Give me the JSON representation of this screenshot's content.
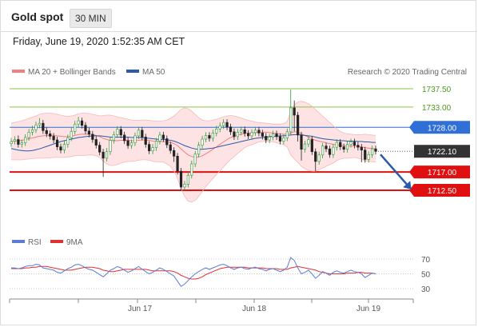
{
  "header": {
    "title": "Gold spot",
    "timeframe": "30 MIN"
  },
  "timestamp": "Friday, June 19, 2020 1:52:35 AM CET",
  "credit": "Research © 2020 Trading Central",
  "legend_main": [
    {
      "label": "MA 20 + Bollinger Bands",
      "color": "#f08080"
    },
    {
      "label": "MA 50",
      "color": "#2a5aa8"
    }
  ],
  "legend_rsi": [
    {
      "label": "RSI",
      "color": "#5b7bd5"
    },
    {
      "label": "9MA",
      "color": "#e03030"
    }
  ],
  "colors": {
    "resistance": "#8cc63f",
    "pivot": "#2f6fd6",
    "support": "#e01010",
    "current": "#333333",
    "arrow": "#2a5aa8",
    "band": "#fde3e3",
    "candle_up": "#2b9a3a",
    "candle_down": "#222222"
  },
  "chart_data": [
    {
      "type": "candlestick",
      "ylim": [
        1700,
        1742
      ],
      "x_ticks": [
        "Jun 17",
        "Jun 18",
        "Jun 19"
      ],
      "levels": [
        {
          "label": "1737.50",
          "value": 1737.5,
          "kind": "resistance"
        },
        {
          "label": "1733.00",
          "value": 1733.0,
          "kind": "resistance"
        },
        {
          "label": "1728.00",
          "value": 1728.0,
          "kind": "pivot"
        },
        {
          "label": "1722.10",
          "value": 1722.1,
          "kind": "current"
        },
        {
          "label": "1717.00",
          "value": 1717.0,
          "kind": "support"
        },
        {
          "label": "1712.50",
          "value": 1712.5,
          "kind": "support"
        }
      ],
      "forecast": {
        "from": 1722.1,
        "to": 1712.5
      },
      "close": [
        1724.5,
        1725.0,
        1723.8,
        1724.2,
        1725.5,
        1726.8,
        1727.4,
        1728.6,
        1729.0,
        1727.2,
        1726.4,
        1725.8,
        1724.9,
        1723.2,
        1722.4,
        1723.8,
        1725.4,
        1727.0,
        1728.8,
        1729.6,
        1728.5,
        1727.1,
        1726.3,
        1725.0,
        1723.6,
        1721.9,
        1720.4,
        1722.0,
        1724.8,
        1726.2,
        1727.5,
        1726.1,
        1724.7,
        1723.5,
        1724.2,
        1725.9,
        1727.3,
        1725.6,
        1723.8,
        1722.2,
        1723.0,
        1724.6,
        1726.1,
        1725.2,
        1723.7,
        1722.3,
        1720.9,
        1717.2,
        1713.3,
        1714.0,
        1716.2,
        1719.0,
        1721.4,
        1723.6,
        1725.1,
        1726.0,
        1725.3,
        1726.6,
        1727.6,
        1728.4,
        1729.2,
        1728.1,
        1726.9,
        1725.7,
        1726.8,
        1727.4,
        1726.5,
        1725.9,
        1726.7,
        1727.3,
        1726.6,
        1725.8,
        1724.9,
        1725.6,
        1726.4,
        1725.7,
        1724.6,
        1725.4,
        1726.9,
        1732.8,
        1731.0,
        1726.1,
        1722.6,
        1723.9,
        1725.0,
        1722.0,
        1719.6,
        1721.2,
        1723.4,
        1722.7,
        1721.3,
        1723.1,
        1724.3,
        1723.2,
        1722.6,
        1723.8,
        1724.4,
        1723.6,
        1723.1,
        1722.4,
        1720.1,
        1721.3,
        1722.7,
        1722.1
      ],
      "open": [
        1724.0,
        1724.6,
        1725.0,
        1723.8,
        1724.2,
        1725.5,
        1726.8,
        1727.4,
        1728.6,
        1729.0,
        1727.2,
        1726.4,
        1725.8,
        1724.9,
        1723.2,
        1722.4,
        1723.8,
        1725.4,
        1727.0,
        1728.8,
        1729.6,
        1728.5,
        1727.1,
        1726.3,
        1725.0,
        1723.6,
        1721.9,
        1720.4,
        1722.0,
        1724.8,
        1726.2,
        1727.5,
        1726.1,
        1724.7,
        1723.5,
        1724.2,
        1725.9,
        1727.3,
        1725.6,
        1723.8,
        1722.2,
        1723.0,
        1724.6,
        1726.1,
        1725.2,
        1723.7,
        1722.3,
        1720.9,
        1717.2,
        1713.3,
        1714.0,
        1716.2,
        1719.0,
        1721.4,
        1723.6,
        1725.1,
        1726.0,
        1725.3,
        1726.6,
        1727.6,
        1728.4,
        1729.2,
        1728.1,
        1726.9,
        1725.7,
        1726.8,
        1727.4,
        1726.5,
        1725.9,
        1726.7,
        1727.3,
        1726.6,
        1725.8,
        1724.9,
        1725.6,
        1726.4,
        1725.7,
        1724.6,
        1725.4,
        1726.9,
        1732.8,
        1731.0,
        1726.1,
        1722.6,
        1723.9,
        1725.0,
        1722.0,
        1719.6,
        1721.2,
        1723.4,
        1722.7,
        1721.3,
        1723.1,
        1724.3,
        1723.2,
        1722.6,
        1723.8,
        1724.4,
        1723.6,
        1723.1,
        1722.4,
        1720.1,
        1721.3,
        1722.7
      ],
      "high": [
        1725.4,
        1725.8,
        1726.0,
        1725.0,
        1726.3,
        1727.6,
        1728.4,
        1729.4,
        1730.3,
        1729.8,
        1728.0,
        1727.2,
        1726.6,
        1725.7,
        1724.0,
        1724.6,
        1726.2,
        1727.9,
        1729.6,
        1730.6,
        1730.4,
        1729.3,
        1727.9,
        1727.1,
        1725.8,
        1724.4,
        1722.7,
        1722.9,
        1725.6,
        1727.0,
        1728.3,
        1728.3,
        1726.9,
        1725.5,
        1725.0,
        1726.7,
        1728.1,
        1728.1,
        1726.4,
        1724.6,
        1723.9,
        1725.4,
        1726.9,
        1726.9,
        1726.0,
        1724.5,
        1723.1,
        1721.7,
        1718.0,
        1714.8,
        1717.0,
        1719.8,
        1722.2,
        1724.4,
        1725.9,
        1726.8,
        1726.8,
        1727.4,
        1728.4,
        1729.2,
        1730.0,
        1730.0,
        1728.9,
        1727.7,
        1727.6,
        1728.2,
        1728.2,
        1727.3,
        1727.5,
        1728.1,
        1728.1,
        1727.4,
        1726.6,
        1726.4,
        1727.2,
        1727.2,
        1726.5,
        1726.2,
        1727.7,
        1737.3,
        1734.6,
        1731.8,
        1726.9,
        1724.7,
        1725.8,
        1725.8,
        1722.8,
        1722.0,
        1724.2,
        1724.2,
        1723.5,
        1723.9,
        1725.1,
        1725.1,
        1724.0,
        1724.6,
        1725.2,
        1725.2,
        1724.4,
        1723.9,
        1723.2,
        1722.1,
        1723.5,
        1723.5
      ],
      "low": [
        1723.2,
        1723.8,
        1723.0,
        1723.0,
        1723.4,
        1724.7,
        1726.0,
        1726.6,
        1727.8,
        1726.4,
        1725.6,
        1725.0,
        1724.1,
        1722.4,
        1721.6,
        1721.6,
        1723.0,
        1724.6,
        1726.2,
        1728.0,
        1727.7,
        1726.3,
        1725.5,
        1724.2,
        1722.8,
        1721.1,
        1715.8,
        1719.6,
        1721.2,
        1724.0,
        1725.4,
        1725.3,
        1723.9,
        1722.7,
        1722.7,
        1723.4,
        1725.1,
        1724.8,
        1723.0,
        1721.4,
        1721.4,
        1722.2,
        1723.8,
        1724.4,
        1722.9,
        1721.5,
        1719.5,
        1716.4,
        1712.4,
        1712.5,
        1713.2,
        1715.4,
        1718.2,
        1720.6,
        1722.8,
        1724.3,
        1724.5,
        1724.5,
        1725.8,
        1726.8,
        1727.6,
        1727.3,
        1726.1,
        1724.9,
        1724.9,
        1726.0,
        1725.7,
        1725.1,
        1725.1,
        1725.9,
        1725.8,
        1725.0,
        1724.1,
        1724.1,
        1724.8,
        1724.9,
        1723.8,
        1723.8,
        1724.6,
        1726.1,
        1727.0,
        1724.5,
        1719.8,
        1721.8,
        1723.1,
        1721.2,
        1717.2,
        1718.8,
        1720.4,
        1721.9,
        1720.5,
        1720.5,
        1722.3,
        1722.4,
        1721.8,
        1721.8,
        1723.0,
        1722.8,
        1722.3,
        1719.4,
        1719.3,
        1719.3,
        1720.5,
        1721.3
      ],
      "ma20": [
        1724.5,
        1724.6,
        1724.7,
        1724.8,
        1725.0,
        1725.2,
        1725.4,
        1725.6,
        1725.8,
        1725.9,
        1726.0,
        1726.0,
        1726.0,
        1725.9,
        1725.8,
        1725.7,
        1725.7,
        1725.8,
        1726.0,
        1726.2,
        1726.3,
        1726.3,
        1726.3,
        1726.2,
        1726.0,
        1725.7,
        1725.3,
        1725.0,
        1724.8,
        1724.7,
        1724.7,
        1724.8,
        1724.8,
        1724.8,
        1724.7,
        1724.7,
        1724.8,
        1724.9,
        1724.9,
        1724.8,
        1724.6,
        1724.5,
        1724.5,
        1724.5,
        1724.4,
        1724.3,
        1724.0,
        1723.5,
        1722.7,
        1721.9,
        1721.2,
        1720.8,
        1720.6,
        1720.7,
        1721.0,
        1721.5,
        1722.0,
        1722.6,
        1723.2,
        1723.8,
        1724.4,
        1725.0,
        1725.5,
        1725.8,
        1726.1,
        1726.3,
        1726.5,
        1726.6,
        1726.6,
        1726.7,
        1726.8,
        1726.8,
        1726.8,
        1726.7,
        1726.6,
        1726.5,
        1726.4,
        1726.3,
        1726.3,
        1726.6,
        1726.9,
        1726.8,
        1726.4,
        1726.0,
        1725.6,
        1725.2,
        1724.8,
        1724.6,
        1724.4,
        1724.2,
        1724.0,
        1723.8,
        1723.7,
        1723.6,
        1723.5,
        1723.4,
        1723.4,
        1723.4,
        1723.3,
        1723.2,
        1723.0,
        1722.9,
        1722.8,
        1722.7
      ],
      "bb_upper": [
        1729.0,
        1729.2,
        1729.4,
        1729.6,
        1729.9,
        1730.2,
        1730.5,
        1730.8,
        1731.2,
        1731.4,
        1731.5,
        1731.5,
        1731.4,
        1731.2,
        1731.0,
        1730.8,
        1730.7,
        1730.8,
        1731.0,
        1731.3,
        1731.5,
        1731.5,
        1731.4,
        1731.2,
        1731.0,
        1730.8,
        1730.9,
        1731.0,
        1731.0,
        1730.8,
        1730.6,
        1730.4,
        1730.2,
        1730.0,
        1729.8,
        1729.7,
        1729.7,
        1729.8,
        1729.8,
        1729.7,
        1729.6,
        1729.5,
        1729.5,
        1729.6,
        1729.8,
        1730.2,
        1730.8,
        1731.6,
        1732.4,
        1732.8,
        1732.6,
        1732.0,
        1731.2,
        1730.4,
        1729.8,
        1729.6,
        1729.6,
        1729.8,
        1730.0,
        1730.3,
        1730.6,
        1730.8,
        1730.9,
        1730.8,
        1730.6,
        1730.3,
        1730.0,
        1729.7,
        1729.5,
        1729.3,
        1729.2,
        1729.1,
        1729.0,
        1728.9,
        1728.8,
        1728.8,
        1728.8,
        1728.9,
        1729.4,
        1732.0,
        1733.6,
        1734.2,
        1734.4,
        1734.2,
        1733.8,
        1733.2,
        1732.4,
        1731.6,
        1730.8,
        1730.0,
        1729.2,
        1728.4,
        1727.6,
        1727.0,
        1726.6,
        1726.4,
        1726.3,
        1726.2,
        1726.2,
        1726.2,
        1726.3,
        1726.2,
        1726.1,
        1726.0
      ],
      "bb_lower": [
        1720.0,
        1720.0,
        1720.0,
        1720.0,
        1720.1,
        1720.2,
        1720.3,
        1720.4,
        1720.4,
        1720.4,
        1720.5,
        1720.5,
        1720.6,
        1720.6,
        1720.6,
        1720.6,
        1720.7,
        1720.8,
        1721.0,
        1721.1,
        1721.1,
        1721.1,
        1721.2,
        1721.2,
        1721.0,
        1720.6,
        1719.7,
        1719.0,
        1718.6,
        1718.6,
        1718.8,
        1719.2,
        1719.4,
        1719.6,
        1719.6,
        1719.7,
        1719.9,
        1720.0,
        1720.0,
        1719.9,
        1719.6,
        1719.5,
        1719.5,
        1719.4,
        1719.0,
        1718.4,
        1717.2,
        1715.4,
        1713.0,
        1711.0,
        1709.8,
        1709.6,
        1710.0,
        1711.0,
        1712.2,
        1713.4,
        1714.4,
        1715.4,
        1716.4,
        1717.3,
        1718.2,
        1719.2,
        1720.1,
        1720.8,
        1721.6,
        1722.3,
        1723.0,
        1723.5,
        1723.7,
        1724.1,
        1724.4,
        1724.5,
        1724.6,
        1724.5,
        1724.4,
        1724.2,
        1724.0,
        1723.7,
        1723.2,
        1721.2,
        1720.2,
        1719.4,
        1718.4,
        1717.8,
        1717.4,
        1717.2,
        1717.2,
        1717.6,
        1718.0,
        1718.4,
        1718.8,
        1719.2,
        1719.8,
        1720.2,
        1720.4,
        1720.4,
        1720.5,
        1720.6,
        1720.4,
        1720.2,
        1719.7,
        1719.6,
        1719.5,
        1719.4
      ],
      "ma50": [
        1722.8,
        1722.6,
        1722.4,
        1722.3,
        1722.2,
        1722.2,
        1722.3,
        1722.5,
        1722.7,
        1723.0,
        1723.3,
        1723.6,
        1723.9,
        1724.2,
        1724.5,
        1724.7,
        1724.9,
        1725.1,
        1725.3,
        1725.5,
        1725.6,
        1725.7,
        1725.8,
        1725.9,
        1725.9,
        1725.9,
        1725.8,
        1725.7,
        1725.6,
        1725.6,
        1725.6,
        1725.6,
        1725.6,
        1725.6,
        1725.5,
        1725.5,
        1725.5,
        1725.5,
        1725.4,
        1725.3,
        1725.2,
        1725.1,
        1725.0,
        1725.0,
        1724.9,
        1724.8,
        1724.6,
        1724.3,
        1723.9,
        1723.5,
        1723.2,
        1722.9,
        1722.7,
        1722.6,
        1722.6,
        1722.7,
        1722.8,
        1722.9,
        1723.1,
        1723.3,
        1723.5,
        1723.7,
        1723.9,
        1724.1,
        1724.3,
        1724.5,
        1724.7,
        1724.9,
        1725.1,
        1725.3,
        1725.4,
        1725.5,
        1725.6,
        1725.7,
        1725.8,
        1725.8,
        1725.9,
        1725.9,
        1726.0,
        1726.1,
        1726.2,
        1726.2,
        1726.1,
        1726.0,
        1725.9,
        1725.8,
        1725.6,
        1725.4,
        1725.2,
        1725.1,
        1725.0,
        1724.9,
        1724.8,
        1724.7,
        1724.7,
        1724.6,
        1724.6,
        1724.6,
        1724.5,
        1724.5,
        1724.4,
        1724.4,
        1724.3,
        1724.3
      ]
    },
    {
      "type": "line",
      "ylim": [
        25,
        75
      ],
      "y_ticks": [
        "70",
        "50",
        "30"
      ],
      "rsi": [
        58,
        58,
        57,
        58,
        60,
        61,
        61,
        63,
        62,
        58,
        57,
        56,
        55,
        52,
        51,
        54,
        57,
        59,
        62,
        63,
        61,
        58,
        56,
        55,
        52,
        49,
        46,
        50,
        55,
        57,
        60,
        58,
        55,
        52,
        54,
        57,
        60,
        56,
        53,
        50,
        52,
        55,
        58,
        56,
        53,
        50,
        47,
        40,
        33,
        36,
        41,
        46,
        50,
        53,
        56,
        58,
        56,
        58,
        60,
        62,
        63,
        61,
        58,
        56,
        58,
        59,
        57,
        56,
        58,
        59,
        57,
        56,
        54,
        56,
        57,
        55,
        53,
        55,
        59,
        72,
        68,
        58,
        50,
        52,
        55,
        50,
        44,
        48,
        53,
        51,
        48,
        52,
        54,
        52,
        51,
        53,
        55,
        53,
        52,
        50,
        45,
        48,
        51,
        50
      ],
      "ma9": [
        57,
        57,
        57,
        57,
        58,
        58,
        59,
        59,
        60,
        60,
        60,
        59,
        58,
        57,
        56,
        55,
        55,
        55,
        56,
        57,
        58,
        59,
        59,
        59,
        58,
        57,
        55,
        54,
        53,
        53,
        54,
        55,
        56,
        56,
        56,
        56,
        56,
        56,
        56,
        55,
        54,
        54,
        54,
        54,
        54,
        54,
        53,
        51,
        48,
        46,
        44,
        43,
        43,
        44,
        46,
        49,
        51,
        53,
        55,
        57,
        58,
        59,
        59,
        59,
        59,
        59,
        59,
        58,
        58,
        58,
        58,
        58,
        57,
        57,
        57,
        57,
        56,
        56,
        56,
        58,
        59,
        60,
        59,
        58,
        57,
        56,
        55,
        53,
        52,
        51,
        50,
        50,
        50,
        50,
        50,
        51,
        51,
        51,
        52,
        52,
        51,
        51,
        51,
        50
      ]
    }
  ]
}
